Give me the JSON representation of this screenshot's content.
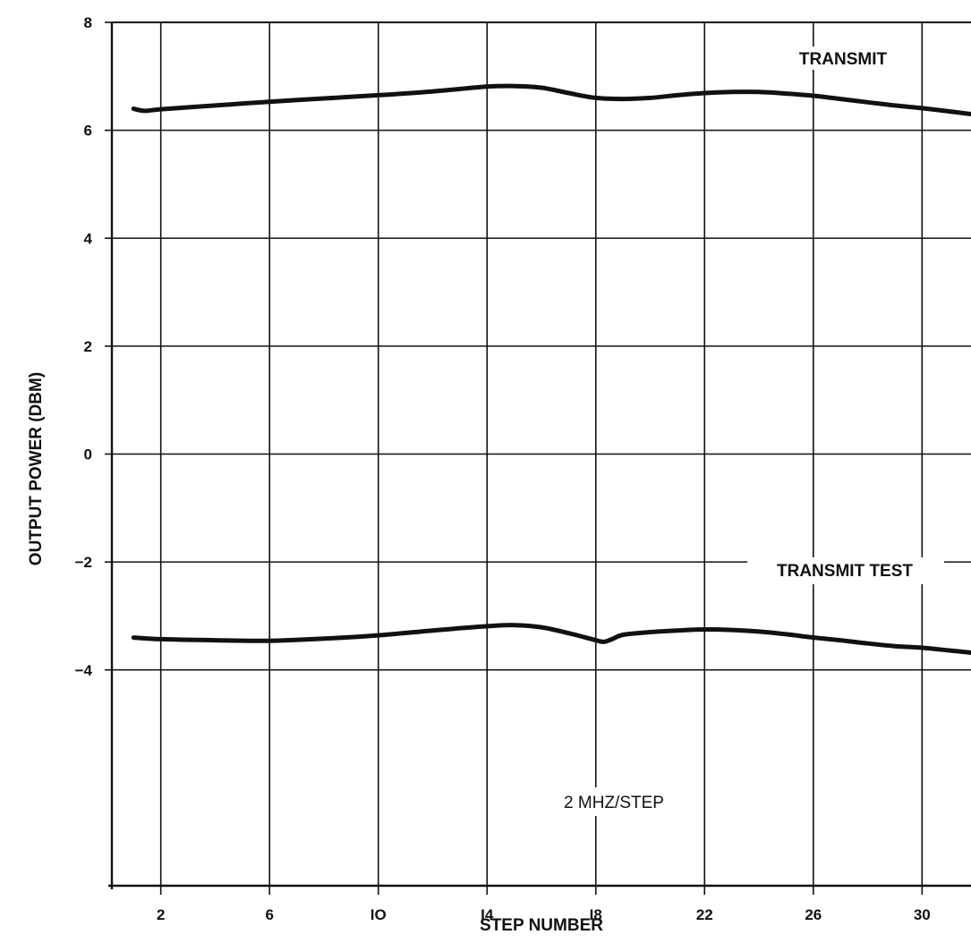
{
  "chart_data": {
    "type": "line",
    "title": "",
    "xlabel": "STEP NUMBER",
    "ylabel": "OUTPUT POWER (DBM)",
    "xlim": [
      0.2,
      31.8
    ],
    "ylim": [
      -8,
      8
    ],
    "x_ticks": [
      2,
      6,
      10,
      14,
      18,
      22,
      26,
      30
    ],
    "x_tick_labels": [
      "2",
      "6",
      "IO",
      "I4",
      "I8",
      "22",
      "26",
      "30"
    ],
    "y_ticks": [
      8,
      6,
      4,
      2,
      0,
      -2,
      -4
    ],
    "y_tick_labels": [
      "8",
      "6",
      "4",
      "2",
      "0",
      "−2",
      "−4"
    ],
    "grid": true,
    "line_color": "#111111",
    "series": [
      {
        "name": "TRANSMIT",
        "x": [
          1,
          1.4,
          2,
          4,
          6,
          8,
          10,
          12,
          14,
          15,
          16,
          17,
          18,
          19,
          20,
          21,
          22,
          23,
          24,
          25,
          26,
          27,
          28,
          29,
          30,
          31,
          31.8
        ],
        "y": [
          6.4,
          6.36,
          6.39,
          6.46,
          6.53,
          6.59,
          6.65,
          6.72,
          6.81,
          6.82,
          6.79,
          6.69,
          6.6,
          6.58,
          6.6,
          6.65,
          6.69,
          6.71,
          6.71,
          6.68,
          6.64,
          6.58,
          6.52,
          6.46,
          6.41,
          6.35,
          6.3
        ]
      },
      {
        "name": "TRANSMIT TEST",
        "x": [
          1,
          2,
          4,
          6,
          8,
          10,
          12,
          14,
          15,
          16,
          17,
          18,
          18.3,
          18.6,
          19,
          20,
          21,
          22,
          23,
          24,
          25,
          26,
          27,
          28,
          29,
          30,
          31,
          31.8
        ],
        "y": [
          -3.4,
          -3.43,
          -3.45,
          -3.46,
          -3.42,
          -3.36,
          -3.27,
          -3.19,
          -3.17,
          -3.21,
          -3.32,
          -3.45,
          -3.48,
          -3.43,
          -3.35,
          -3.3,
          -3.27,
          -3.25,
          -3.26,
          -3.29,
          -3.34,
          -3.4,
          -3.45,
          -3.51,
          -3.56,
          -3.59,
          -3.64,
          -3.68
        ]
      }
    ],
    "annotations": [
      "TRANSMIT",
      "TRANSMIT TEST",
      "2 MHZ/STEP"
    ]
  }
}
